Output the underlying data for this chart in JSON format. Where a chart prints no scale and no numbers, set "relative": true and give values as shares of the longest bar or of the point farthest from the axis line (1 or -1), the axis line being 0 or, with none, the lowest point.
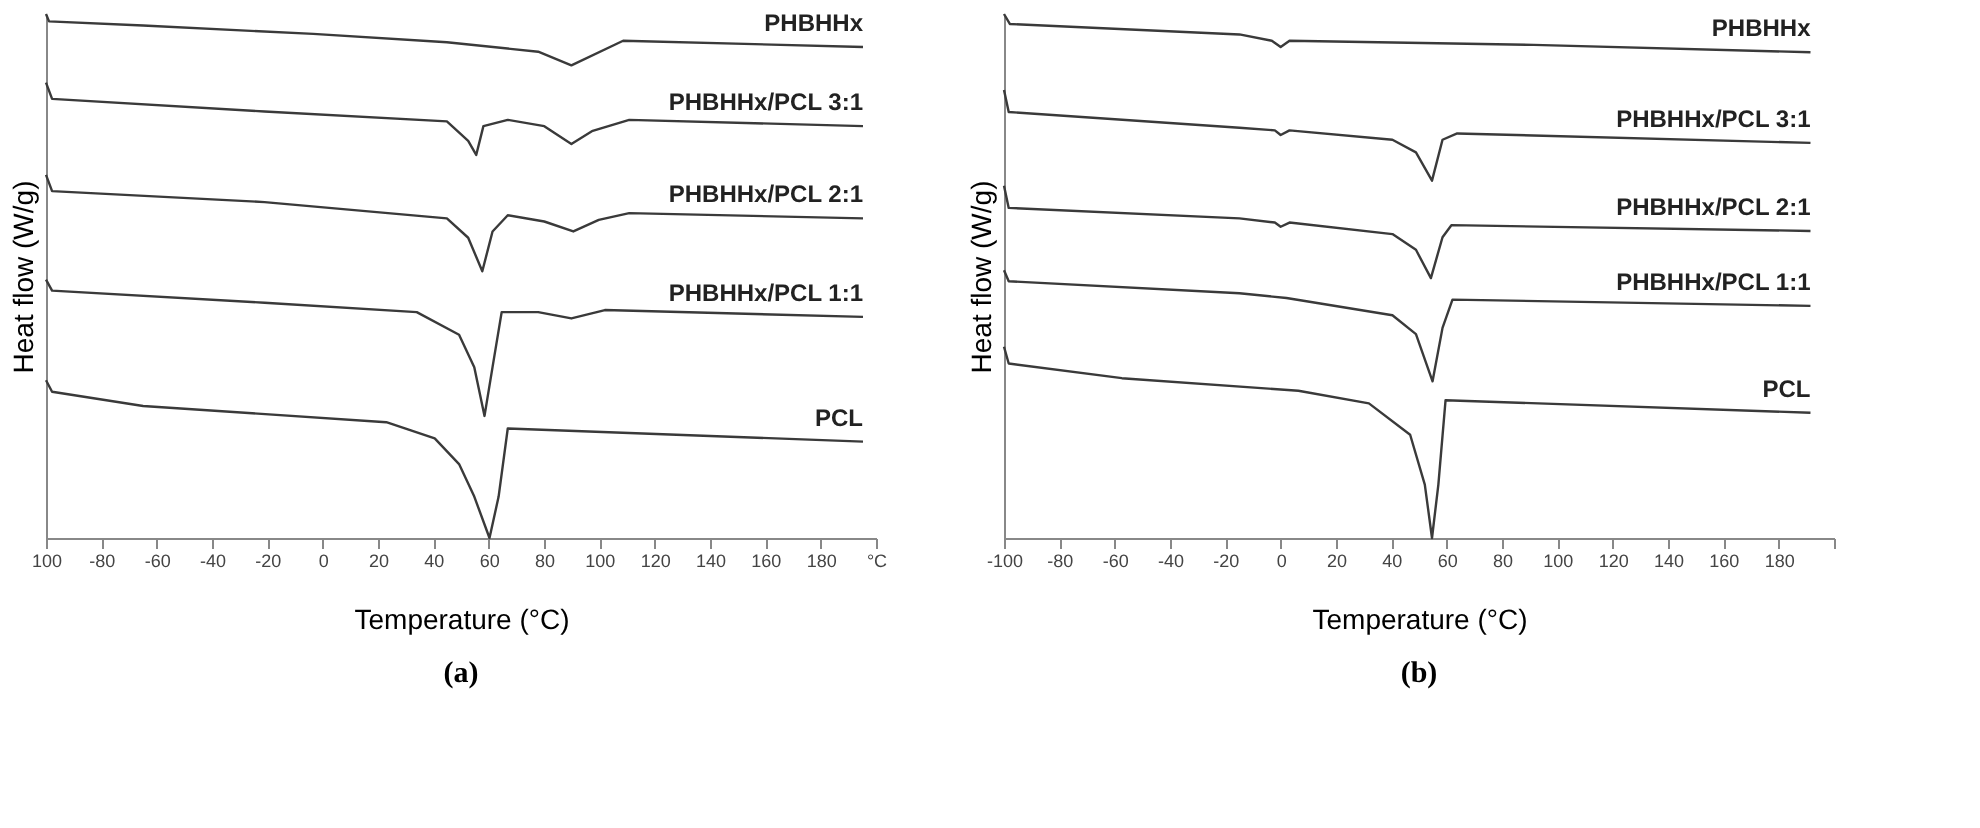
{
  "chart_data": [
    {
      "type": "line",
      "title": "(a)",
      "xlabel": "Temperature (°C)",
      "ylabel": "Heat flow (W/g)",
      "relative": true,
      "grid": false,
      "legend": false,
      "line_style": "solid",
      "marker": "none",
      "xlim": [
        -100,
        200
      ],
      "xticks": [
        {
          "value": -100,
          "label": "100"
        },
        -80,
        -60,
        -40,
        -20,
        0,
        20,
        40,
        60,
        80,
        100,
        120,
        140,
        160,
        180,
        {
          "value": 200,
          "label": "°C"
        }
      ],
      "series": [
        {
          "name": "PHBHHx",
          "color": "#3a3a3a",
          "x": [
            -100,
            -98.9,
            -64.9,
            -3.4,
            44.9,
            77.9,
            89.9,
            108.6,
            195.3
          ],
          "values": [
            1.0,
            0.986,
            0.978,
            0.962,
            0.946,
            0.928,
            0.902,
            0.949,
            0.937
          ]
        },
        {
          "name": "PHBHHx/PCL 3:1",
          "color": "#3a3a3a",
          "x": [
            -100,
            -97.8,
            -21,
            44.9,
            52.6,
            55.5,
            58.1,
            66.9,
            80.1,
            89.9,
            97.6,
            110.8,
            195.3
          ],
          "values": [
            0.869,
            0.838,
            0.814,
            0.795,
            0.758,
            0.731,
            0.786,
            0.798,
            0.786,
            0.752,
            0.777,
            0.798,
            0.786
          ]
        },
        {
          "name": "PHBHHx/PCL 2:1",
          "color": "#3a3a3a",
          "x": [
            -100,
            -97.8,
            -21,
            44.9,
            52.6,
            57.7,
            61.4,
            66.9,
            80.1,
            90.6,
            99.8,
            110.8,
            195.3
          ],
          "values": [
            0.693,
            0.662,
            0.641,
            0.61,
            0.573,
            0.509,
            0.585,
            0.616,
            0.604,
            0.585,
            0.607,
            0.62,
            0.61
          ]
        },
        {
          "name": "PHBHHx/PCL 1:1",
          "color": "#3a3a3a",
          "x": [
            -100,
            -97.8,
            -21,
            34.0,
            49.3,
            54.8,
            58.5,
            61.4,
            64.7,
            77.9,
            89.9,
            102.0,
            195.3
          ],
          "values": [
            0.493,
            0.472,
            0.449,
            0.431,
            0.388,
            0.326,
            0.233,
            0.326,
            0.431,
            0.431,
            0.419,
            0.435,
            0.422
          ]
        },
        {
          "name": "PCL",
          "color": "#3a3a3a",
          "x": [
            -100,
            -97.8,
            -64.9,
            23.0,
            40.5,
            49.3,
            54.8,
            60.3,
            63.6,
            66.9,
            195.3
          ],
          "values": [
            0.301,
            0.279,
            0.252,
            0.221,
            0.19,
            0.141,
            0.079,
            0.0,
            0.079,
            0.209,
            0.184
          ]
        }
      ]
    },
    {
      "type": "line",
      "title": "(b)",
      "xlabel": "Temperature (°C)",
      "ylabel": "Heat flow (W/g)",
      "relative": true,
      "grid": false,
      "legend": false,
      "line_style": "solid",
      "marker": "none",
      "xlim": [
        -100,
        200
      ],
      "xticks": [
        -100,
        -80,
        -60,
        -40,
        -20,
        0,
        20,
        40,
        60,
        80,
        100,
        120,
        140,
        160,
        180,
        {
          "value": 200,
          "label": null
        }
      ],
      "series": [
        {
          "name": "PHBHHx",
          "color": "#3a3a3a",
          "x": [
            -100,
            -97.9,
            -14.9,
            -3.2,
            0,
            3.2,
            91.5,
            191.5
          ],
          "values": [
            1.0,
            0.981,
            0.961,
            0.949,
            0.937,
            0.949,
            0.941,
            0.927
          ]
        },
        {
          "name": "PHBHHx/PCL 3:1",
          "color": "#3a3a3a",
          "x": [
            -100,
            -98.3,
            -14.9,
            -2.1,
            0,
            3.2,
            40.4,
            48.9,
            54.7,
            58.5,
            63.8,
            191.5
          ],
          "values": [
            0.855,
            0.813,
            0.783,
            0.778,
            0.769,
            0.778,
            0.76,
            0.736,
            0.682,
            0.76,
            0.772,
            0.754
          ]
        },
        {
          "name": "PHBHHx/PCL 2:1",
          "color": "#3a3a3a",
          "x": [
            -100,
            -98.3,
            -14.9,
            -2.1,
            0,
            3.2,
            40.4,
            48.9,
            54.3,
            58.5,
            61.7,
            191.5
          ],
          "values": [
            0.672,
            0.63,
            0.61,
            0.602,
            0.594,
            0.602,
            0.58,
            0.55,
            0.496,
            0.574,
            0.597,
            0.586
          ]
        },
        {
          "name": "PHBHHx/PCL 1:1",
          "color": "#3a3a3a",
          "x": [
            -100,
            -98.3,
            -14.9,
            2.1,
            40.4,
            48.9,
            54.9,
            58.5,
            62.1,
            191.5
          ],
          "values": [
            0.511,
            0.49,
            0.467,
            0.458,
            0.425,
            0.389,
            0.299,
            0.401,
            0.455,
            0.443
          ]
        },
        {
          "name": "PCL",
          "color": "#3a3a3a",
          "x": [
            -100,
            -98.3,
            -57.4,
            6.4,
            31.9,
            46.8,
            52.1,
            54.7,
            57.0,
            59.6,
            191.5
          ],
          "values": [
            0.365,
            0.333,
            0.305,
            0.281,
            0.257,
            0.197,
            0.102,
            0.0,
            0.102,
            0.263,
            0.239
          ]
        }
      ]
    }
  ]
}
